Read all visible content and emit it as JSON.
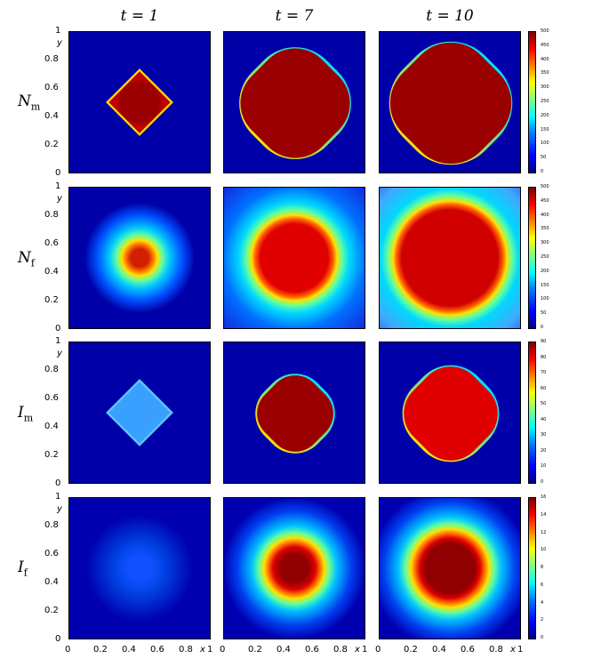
{
  "columns": [
    {
      "title": "t = 1"
    },
    {
      "title": "t = 7"
    },
    {
      "title": "t = 10"
    }
  ],
  "rows": [
    {
      "label_main": "N",
      "label_sub": "m"
    },
    {
      "label_main": "N",
      "label_sub": "f"
    },
    {
      "label_main": "I",
      "label_sub": "m"
    },
    {
      "label_main": "I",
      "label_sub": "f"
    }
  ],
  "axis": {
    "y_ticks": [
      "1",
      "0.8",
      "0.6",
      "0.4",
      "0.2",
      "0"
    ],
    "x_ticks": [
      "0",
      "0.2",
      "0.4",
      "0.6",
      "0.8",
      "1"
    ],
    "x_label": "x",
    "y_label": "y"
  },
  "colorbars": [
    {
      "ticks": [
        "500",
        "450",
        "400",
        "350",
        "300",
        "250",
        "200",
        "150",
        "100",
        "50",
        "0"
      ]
    },
    {
      "ticks": [
        "500",
        "450",
        "400",
        "350",
        "300",
        "250",
        "200",
        "150",
        "100",
        "50",
        "0"
      ]
    },
    {
      "ticks": [
        "90",
        "80",
        "70",
        "60",
        "50",
        "40",
        "30",
        "20",
        "10",
        "0"
      ]
    },
    {
      "ticks": [
        "16",
        "14",
        "12",
        "10",
        "8",
        "6",
        "4",
        "2",
        "0"
      ]
    }
  ],
  "colors": {
    "background_blue": "#0000a8",
    "hot": "#8b0000"
  }
}
